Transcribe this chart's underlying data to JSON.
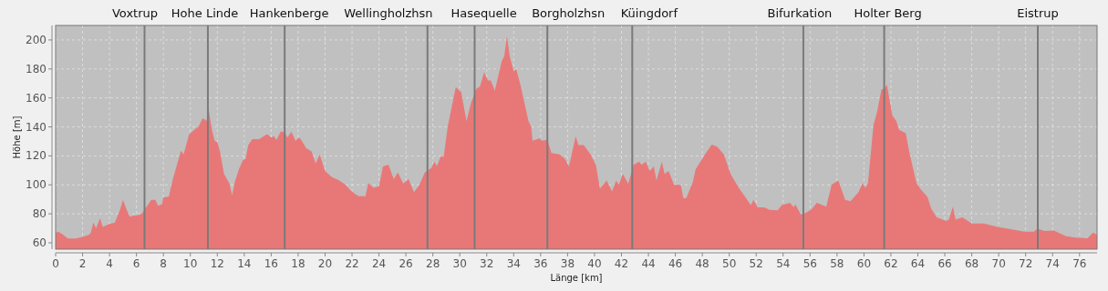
{
  "chart_data": {
    "type": "area",
    "xlabel": "Länge [km]",
    "ylabel": "Höhe [m]",
    "color": "#e87878",
    "grid": true,
    "xlim": [
      0,
      77.3
    ],
    "ylim": [
      55.6,
      210
    ],
    "xticks": [
      0,
      2,
      4,
      6,
      8,
      10,
      12,
      14,
      16,
      18,
      20,
      22,
      24,
      26,
      28,
      30,
      32,
      34,
      36,
      38,
      40,
      42,
      44,
      46,
      48,
      50,
      52,
      54,
      56,
      58,
      60,
      62,
      64,
      66,
      68,
      70,
      72,
      74,
      76
    ],
    "yticks": [
      60,
      80,
      100,
      120,
      140,
      160,
      180,
      200
    ],
    "x": [
      0,
      0.2,
      0.5,
      0.9,
      1.5,
      2,
      2.5,
      2.6,
      2.8,
      3.0,
      3.3,
      3.5,
      4.0,
      4.4,
      4.8,
      5.0,
      5.2,
      5.5,
      5.8,
      6.0,
      6.4,
      6.8,
      7.1,
      7.4,
      7.6,
      7.9,
      8.0,
      8.4,
      8.7,
      9.1,
      9.3,
      9.5,
      9.9,
      10.4,
      10.6,
      10.9,
      11.1,
      11.2,
      11.35,
      11.6,
      11.8,
      12.0,
      12.2,
      12.5,
      12.9,
      13.1,
      13.3,
      13.6,
      13.9,
      14.1,
      14.3,
      14.6,
      15.1,
      15.7,
      16.0,
      16.2,
      16.4,
      16.7,
      17.0,
      17.2,
      17.5,
      17.8,
      18.1,
      18.3,
      18.6,
      19.0,
      19.3,
      19.6,
      20.0,
      20.5,
      21.0,
      21.5,
      21.8,
      22.2,
      22.5,
      23.0,
      23.2,
      23.6,
      24.0,
      24.3,
      24.7,
      25.1,
      25.4,
      25.8,
      26.2,
      26.6,
      27.0,
      27.4,
      27.9,
      28.1,
      28.3,
      28.6,
      28.8,
      29.1,
      29.7,
      30.1,
      30.5,
      30.8,
      31.2,
      31.5,
      31.8,
      32.1,
      32.3,
      32.6,
      33.1,
      33.3,
      33.5,
      33.7,
      34.0,
      34.2,
      34.5,
      35.1,
      35.3,
      35.4,
      35.9,
      36.1,
      36.5,
      36.8,
      37.4,
      37.8,
      38.1,
      38.6,
      38.8,
      39.2,
      39.7,
      40.1,
      40.4,
      40.9,
      41.3,
      41.6,
      41.8,
      42.1,
      42.5,
      42.9,
      43.3,
      43.5,
      43.8,
      44.1,
      44.4,
      44.6,
      45.0,
      45.2,
      45.5,
      45.9,
      46.4,
      46.6,
      46.8,
      47.3,
      47.5,
      48.2,
      48.7,
      49.1,
      49.6,
      50.1,
      50.7,
      51.1,
      51.6,
      51.8,
      52.1,
      52.6,
      53.0,
      53.6,
      53.9,
      54.5,
      54.8,
      54.9,
      55.3,
      55.6,
      56.1,
      56.5,
      57.2,
      57.6,
      58.1,
      58.6,
      59.0,
      59.6,
      59.9,
      60.1,
      60.3,
      60.7,
      61.0,
      61.3,
      61.5,
      61.7,
      62.1,
      62.4,
      62.6,
      63.1,
      63.4,
      63.9,
      64.2,
      64.7,
      65.0,
      65.4,
      66.1,
      66.3,
      66.6,
      66.8,
      67.3,
      68.0,
      68.9,
      69.9,
      71.0,
      71.9,
      72.6,
      72.9,
      73.4,
      74.1,
      75.0,
      75.7,
      76.6,
      77.0,
      77.3
    ],
    "values": [
      66.7,
      67.7,
      66,
      63,
      63,
      64,
      65.6,
      66.7,
      74,
      70,
      77,
      71,
      73,
      74,
      83.4,
      89.7,
      84.5,
      78,
      78.8,
      78.8,
      80,
      85.5,
      89.7,
      89.7,
      85.5,
      86.6,
      91.4,
      91.8,
      104,
      117,
      123.6,
      121,
      134.7,
      138.9,
      140,
      145.8,
      145,
      144,
      152.5,
      138,
      130.5,
      129.5,
      123,
      107.5,
      101,
      92.8,
      102,
      110.6,
      117,
      118,
      127.4,
      131.5,
      131.5,
      135,
      132.6,
      133.6,
      131,
      136.8,
      136.4,
      132.6,
      136.8,
      130.5,
      132.6,
      130,
      125.3,
      123,
      114.8,
      121,
      109.6,
      105.4,
      103.3,
      100.2,
      97,
      93.9,
      92.2,
      92.2,
      101.2,
      98,
      99,
      112.7,
      114,
      104,
      108.5,
      101,
      104,
      95,
      100,
      108.5,
      111.7,
      116,
      113,
      120,
      119,
      140,
      167.5,
      164,
      144,
      155.6,
      166,
      168,
      177.6,
      172,
      172,
      165,
      185,
      189,
      202.7,
      189,
      178.6,
      179.7,
      169,
      144,
      140,
      130.5,
      132,
      130.5,
      131,
      122,
      121,
      118,
      112.7,
      133.6,
      127.4,
      127.4,
      121,
      113.8,
      97.4,
      103,
      95.5,
      103,
      100,
      107.5,
      100.8,
      113.8,
      116,
      113.8,
      116,
      109.6,
      112.7,
      103,
      116,
      107.5,
      109.6,
      100,
      100,
      90.8,
      90.8,
      102,
      110.6,
      121,
      127.8,
      126.4,
      121,
      107.5,
      98,
      92.8,
      86,
      89.7,
      84.5,
      84.5,
      82.8,
      82.4,
      86,
      87.6,
      84.5,
      86.6,
      79.7,
      80.3,
      83,
      87.6,
      85,
      100.2,
      103,
      89.7,
      88.7,
      95,
      101.2,
      98,
      101.2,
      141,
      151.4,
      166,
      166,
      169,
      148,
      144,
      138,
      135.7,
      121,
      101.2,
      97,
      91.8,
      83.4,
      77.6,
      75,
      76,
      85,
      76,
      77.6,
      73.4,
      73.4,
      70.9,
      69.2,
      67.7,
      67.7,
      69.8,
      68.2,
      68.4,
      64.6,
      63.6,
      63.1,
      67.1,
      65.6
    ],
    "ref_lines": [
      {
        "axis": "x",
        "value": 6.6,
        "label": "Voxtrup",
        "color": "#7a7a7a"
      },
      {
        "axis": "x",
        "value": 11.3,
        "label": "Hohe Linde",
        "color": "#7a7a7a"
      },
      {
        "axis": "x",
        "value": 17.0,
        "label": "Hankenberge",
        "color": "#7a7a7a"
      },
      {
        "axis": "x",
        "value": 27.6,
        "label": "Wellingholzhsn",
        "color": "#7a7a7a"
      },
      {
        "axis": "x",
        "value": 31.1,
        "label": "Hasequelle",
        "color": "#7a7a7a"
      },
      {
        "axis": "x",
        "value": 36.5,
        "label": "Borgholzhsn",
        "color": "#7a7a7a"
      },
      {
        "axis": "x",
        "value": 42.8,
        "label": "Küingdorf",
        "color": "#7a7a7a"
      },
      {
        "axis": "x",
        "value": 55.5,
        "label": "Bifurkation",
        "color": "#7a7a7a"
      },
      {
        "axis": "x",
        "value": 61.5,
        "label": "Holter Berg",
        "color": "#7a7a7a"
      },
      {
        "axis": "x",
        "value": 72.9,
        "label": "Eistrup",
        "color": "#7a7a7a"
      }
    ]
  }
}
